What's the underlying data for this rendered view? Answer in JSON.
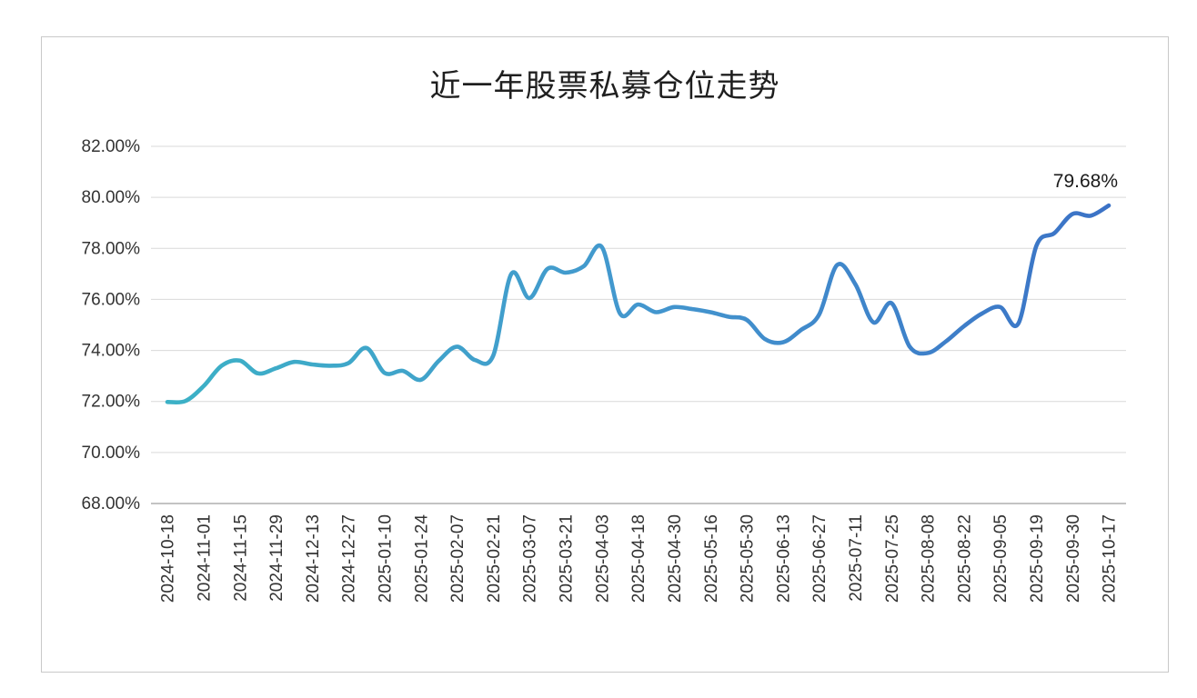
{
  "chart_data": {
    "type": "line",
    "title": "近一年股票私募仓位走势",
    "xlabel": "",
    "ylabel": "",
    "ylim": [
      68,
      82
    ],
    "grid": true,
    "legend": false,
    "final_value_label": "79.68%",
    "y_ticks": [
      {
        "value": 82,
        "label": "82.00%"
      },
      {
        "value": 80,
        "label": "80.00%"
      },
      {
        "value": 78,
        "label": "78.00%"
      },
      {
        "value": 76,
        "label": "76.00%"
      },
      {
        "value": 74,
        "label": "74.00%"
      },
      {
        "value": 72,
        "label": "72.00%"
      },
      {
        "value": 70,
        "label": "70.00%"
      },
      {
        "value": 68,
        "label": "68.00%"
      }
    ],
    "x_tick_labels": [
      "2024-10-18",
      "2024-11-01",
      "2024-11-15",
      "2024-11-29",
      "2024-12-13",
      "2024-12-27",
      "2025-01-10",
      "2025-01-24",
      "2025-02-07",
      "2025-02-21",
      "2025-03-07",
      "2025-03-21",
      "2025-04-03",
      "2025-04-18",
      "2025-04-30",
      "2025-05-16",
      "2025-05-30",
      "2025-06-13",
      "2025-06-27",
      "2025-07-11",
      "2025-07-25",
      "2025-08-08",
      "2025-08-22",
      "2025-09-05",
      "2025-09-19",
      "2025-09-30",
      "2025-10-17"
    ],
    "points_per_tick": 2,
    "values": [
      71.98,
      72.02,
      72.6,
      73.4,
      73.6,
      73.1,
      73.3,
      73.55,
      73.45,
      73.4,
      73.5,
      74.1,
      73.12,
      73.2,
      72.85,
      73.6,
      74.15,
      73.62,
      73.8,
      77.0,
      76.05,
      77.2,
      77.05,
      77.3,
      78.05,
      75.45,
      75.8,
      75.5,
      75.7,
      75.62,
      75.5,
      75.32,
      75.2,
      74.45,
      74.32,
      74.8,
      75.4,
      77.35,
      76.6,
      75.1,
      75.85,
      74.15,
      73.9,
      74.35,
      74.95,
      75.45,
      75.7,
      75.05,
      78.1,
      78.6,
      79.35,
      79.28,
      79.68
    ]
  },
  "colors": {
    "line_gradient_start": "#3cb1c6",
    "line_gradient_mid": "#4397ce",
    "line_gradient_end": "#3b72c6",
    "gridline": "#d9d9d9",
    "axis_line": "#afafaf",
    "tick_text": "#333333",
    "title_text": "#1f1f1f",
    "data_label": "#1a1a1a",
    "border": "#c9c9c9",
    "background": "#ffffff"
  }
}
